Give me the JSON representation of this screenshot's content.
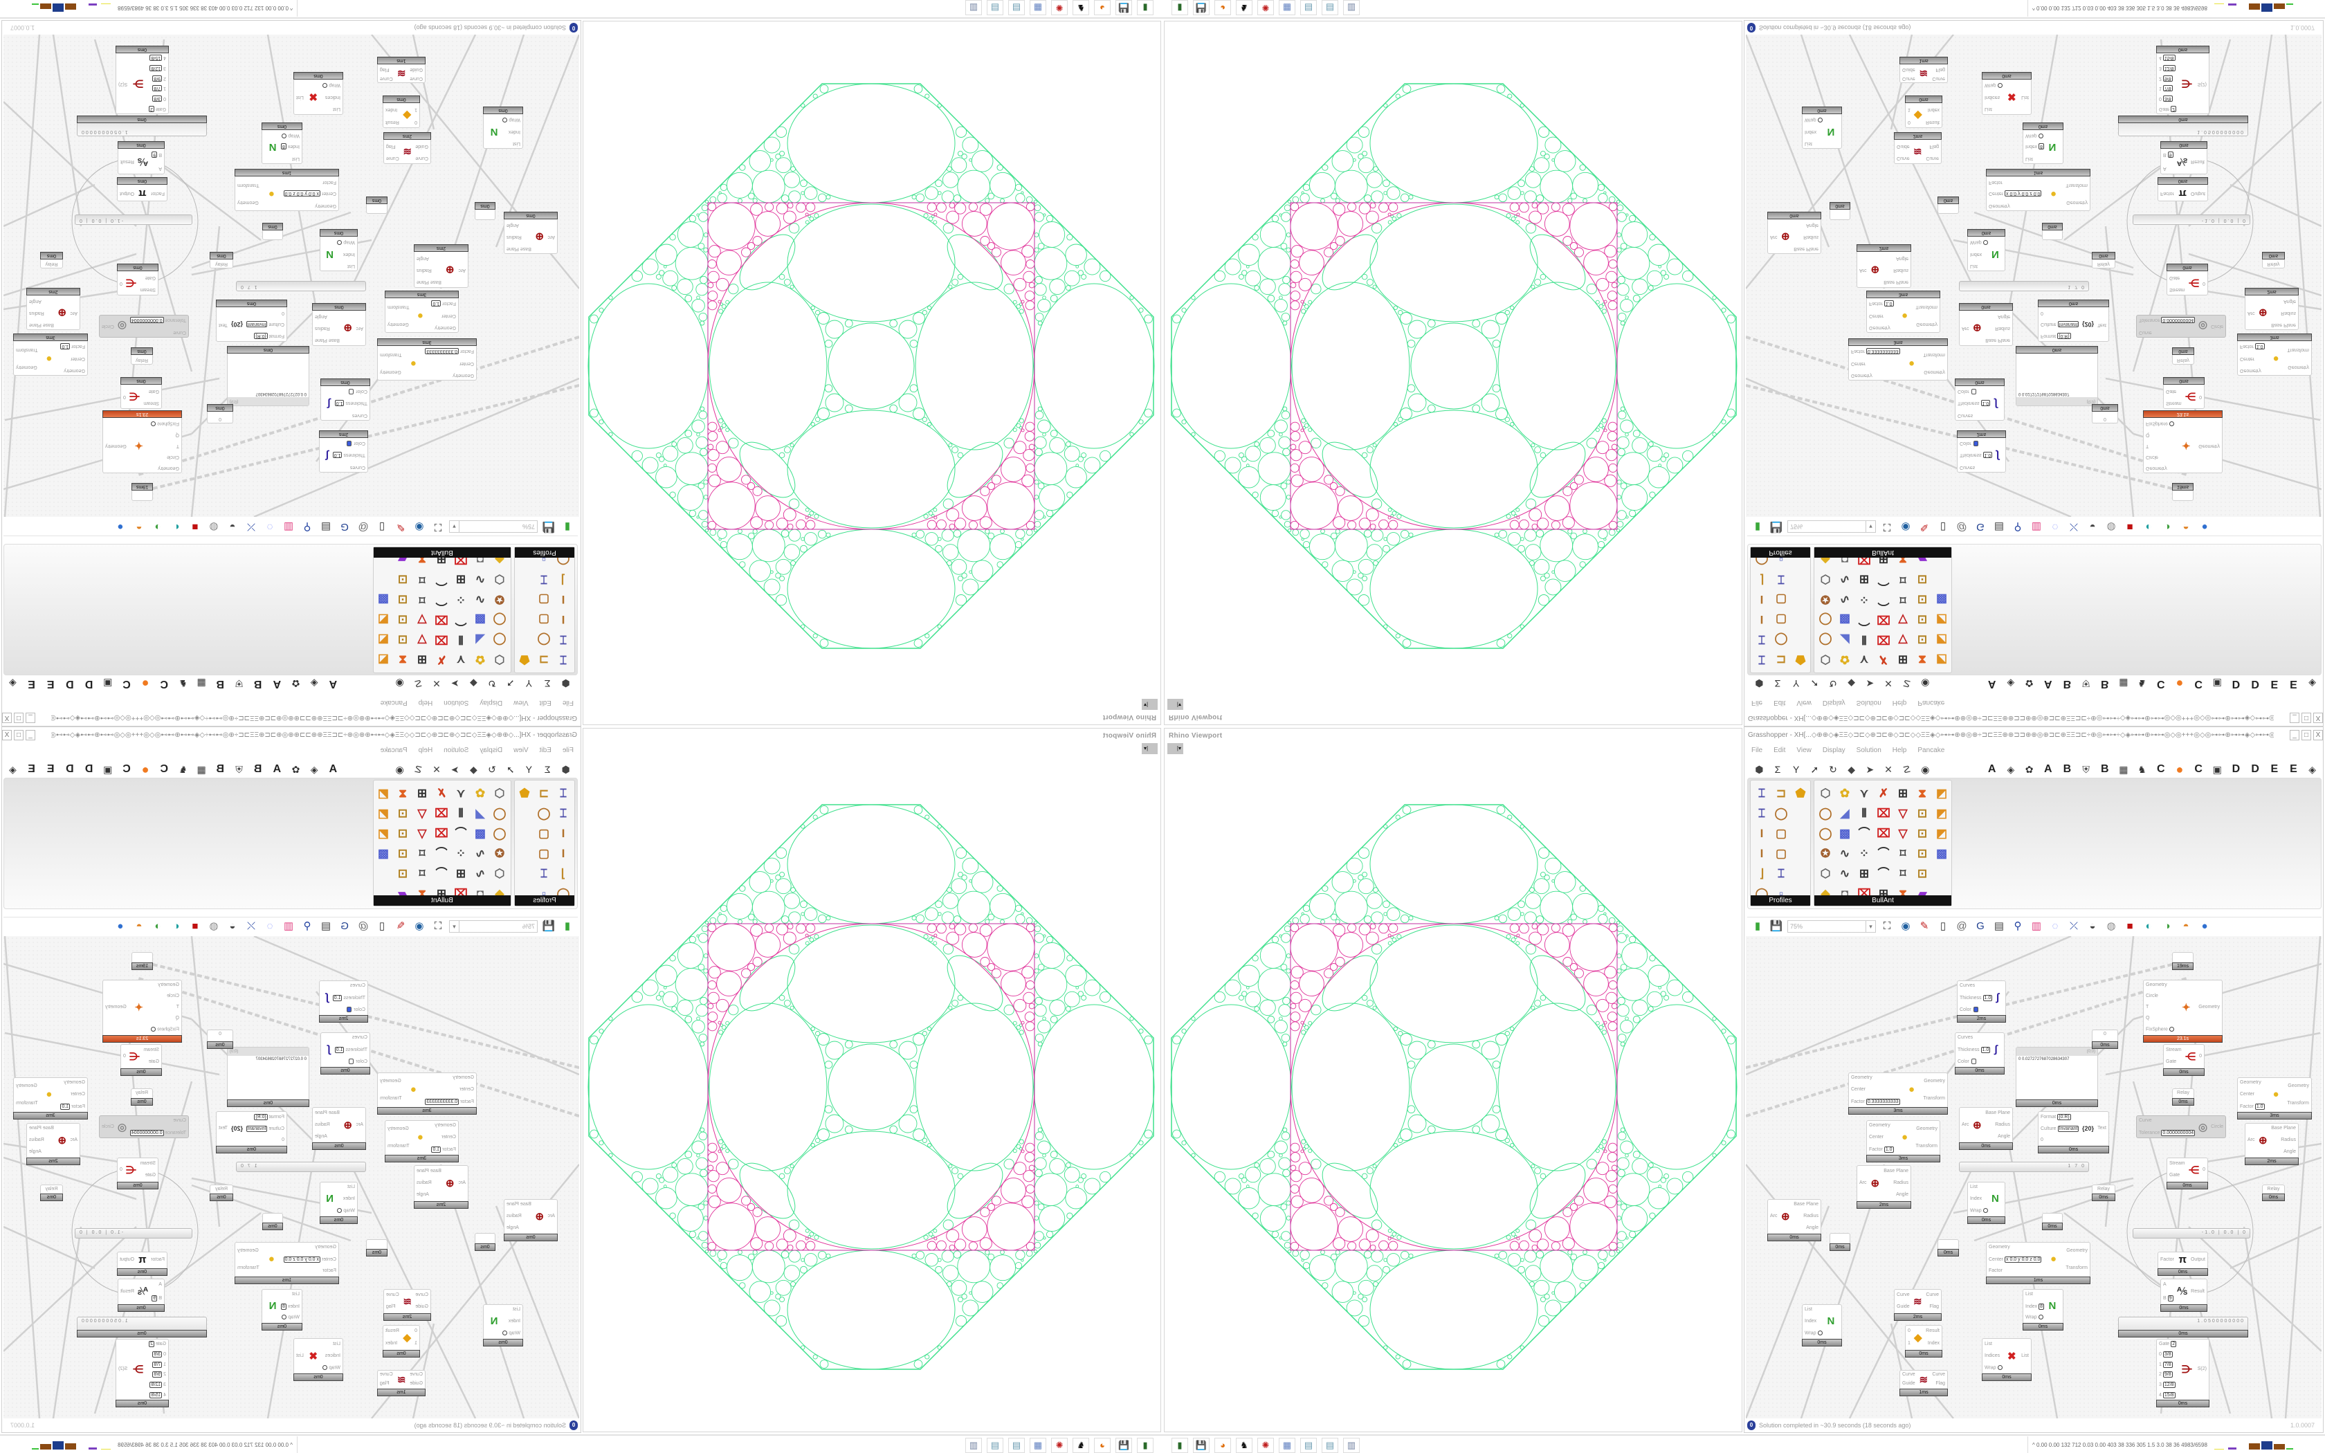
{
  "rhino_viewport": {
    "title": "Rhino Viewport",
    "dropdown_icon": "caret-down-icon"
  },
  "grasshopper": {
    "title": "Grasshopper - XH[...◇⊕⊕◇◈ΞΞ◇⊐⊏◇⊕⊐⊏⊕◇⊐⊏◇◇ΞΞ◈◇⊶⊶⊕⊕◎⊕÷⊐⊏ΞΞ⊕⊕⊐⊐⊕⊕◎⊕⊐⊏⊕ΞΞ⊐⊏÷⊕◎⊶⊶÷◇◈⊶⊶⊕⊶⊶◎◇◎+++◎◇◎⊶⊶⊕⊶⊶◈◇⊶⊶◎⊕÷⊐⊏ΞΞ⊕⊐⊐⊕⊕...",
    "window_buttons": [
      "_",
      "□",
      "X"
    ],
    "menu": [
      "File",
      "Edit",
      "View",
      "Display",
      "Solution",
      "Help",
      "Pancake"
    ],
    "tab_icons": [
      "hexagon-icon",
      "sigma-icon",
      "y-branch-icon",
      "arrow-icon",
      "loop-icon",
      "surface-icon",
      "pin-icon",
      "cross-icon",
      "curve-icon",
      "eye-icon"
    ],
    "tab_letters": [
      "A",
      "icon",
      "icon",
      "A",
      "B",
      "icon",
      "B",
      "icon",
      "icon",
      "C",
      "orange-dot",
      "C",
      "icon",
      "D",
      "D",
      "E",
      "E",
      "icon"
    ],
    "palette": {
      "groups": [
        {
          "label": "Profiles",
          "columns": 3,
          "icons": [
            "i-section",
            "c-channel",
            "hollow-section",
            "i-section",
            "ring",
            "",
            "i-beam",
            "rect-tube",
            "",
            "i-beam",
            "rect-tube",
            "",
            "angle",
            "i-section",
            "",
            "ring",
            "points",
            ""
          ]
        },
        {
          "label": "BullAnt",
          "columns": 7,
          "icons": [
            "box",
            "flower",
            "v-lines",
            "cross",
            "ladder",
            "funnel",
            "chart",
            "ring",
            "plane",
            "bars",
            "red-cross",
            "v-net",
            "lock",
            "chart",
            "ring",
            "cube",
            "bend",
            "red-cross",
            "v-net",
            "lock",
            "chart",
            "ball",
            "curve",
            "net",
            "bend",
            "frame",
            "lock",
            "cube",
            "box",
            "curve",
            "ladder",
            "bend",
            "frame",
            "lock",
            "",
            "diamond",
            "disk",
            "red-cross",
            "ladder",
            "funnel",
            "rainbow",
            ""
          ]
        }
      ]
    },
    "toolbar": {
      "zoom_value": "75%",
      "icons": [
        "new-file-icon",
        "save-icon",
        "zoom-extents-icon",
        "preview-icon",
        "sketch-icon",
        "bake-icon",
        "at-icon",
        "gha-icon",
        "document-icon",
        "search-icon",
        "package-icon",
        "bulb-icon",
        "wires-icon",
        "shaded-icon",
        "wireframe-icon",
        "solid-icon",
        "preview-mesh-icon",
        "preview-green-icon",
        "preview-half-icon",
        "sphere-icon"
      ]
    },
    "canvas": {
      "nodes": [
        {
          "kind": "component",
          "icon": "custom-preview-icon",
          "inputs": [
            "Curves",
            {
              "n": "Thickness",
              "v": "1.0"
            },
            {
              "n": "Color",
              "swatch": "#3b5bdb"
            }
          ],
          "outputs": [],
          "footer": "2ms"
        },
        {
          "kind": "component",
          "icon": "custom-preview-icon",
          "inputs": [
            "Curves",
            {
              "n": "Thickness",
              "v": "1.0"
            },
            {
              "n": "Color",
              "swatch": "#ffffff"
            }
          ],
          "outputs": [],
          "footer": "0ms"
        },
        {
          "kind": "component",
          "icon": "scale-icon",
          "inputs": [
            "Geometry",
            "Center",
            {
              "n": "Factor",
              "v": "0.3333333333"
            }
          ],
          "outputs": [
            "Geometry",
            "Transform"
          ],
          "footer": "3ms"
        },
        {
          "kind": "component",
          "icon": "scale-icon",
          "inputs": [
            "Geometry",
            "Center",
            {
              "n": "Factor",
              "v": "1.0"
            }
          ],
          "outputs": [
            "Geometry",
            "Transform"
          ],
          "footer": "3ms"
        },
        {
          "kind": "component",
          "icon": "arc-icon",
          "inputs": [
            "Arc"
          ],
          "outputs": [
            "Base Plane",
            "Radius",
            "Angle"
          ],
          "footer": "0ms"
        },
        {
          "kind": "component",
          "icon": "format-icon",
          "icon_text": "{20}",
          "inputs": [
            {
              "n": "Format",
              "v": "{0:R}"
            },
            {
              "n": "Culture",
              "v": "Invariant"
            },
            "0"
          ],
          "outputs": [
            "Text"
          ],
          "footer": "0ms"
        },
        {
          "kind": "panel",
          "header": "(0;0)",
          "text": "0  0.0272727687028634307",
          "footer": "0ms"
        },
        {
          "kind": "param",
          "label": "0",
          "footer": "0ms"
        },
        {
          "kind": "component",
          "state": "warning",
          "icon": "kangaroo-icon",
          "inputs": [
            "Geometry",
            "Circle",
            "T",
            "Q",
            {
              "n": "FixSphere",
              "toggle": true
            }
          ],
          "outputs": [
            "Geometry"
          ],
          "footer": "23.1s"
        },
        {
          "kind": "param",
          "label": "",
          "footer": "19ms"
        },
        {
          "kind": "component",
          "icon": "stream-gate-icon",
          "inputs": [
            "Stream",
            "Gate"
          ],
          "outputs": [
            "0"
          ],
          "footer": "0ms"
        },
        {
          "kind": "param",
          "label": "Relay",
          "footer": "0ms"
        },
        {
          "kind": "component",
          "icon": "scale-icon",
          "inputs": [
            "Geometry",
            "Center",
            {
              "n": "Factor",
              "v": "1.0"
            }
          ],
          "outputs": [
            "Geometry",
            "Transform"
          ],
          "footer": "3ms"
        },
        {
          "kind": "component",
          "state": "disabled",
          "icon": "circle-fit-icon",
          "inputs": [
            "Curve",
            {
              "n": "Tolerance",
              "v": "0.0000000004"
            }
          ],
          "outputs": [
            "Circle"
          ]
        },
        {
          "kind": "component",
          "icon": "arc-icon",
          "inputs": [
            "Arc"
          ],
          "outputs": [
            "Base Plane",
            "Radius",
            "Angle"
          ],
          "footer": "2ms"
        },
        {
          "kind": "component",
          "icon": "stream-gate-icon",
          "inputs": [
            "Stream",
            "Gate"
          ],
          "outputs": [
            "0"
          ],
          "footer": "0ms"
        },
        {
          "kind": "slider",
          "value": "1 7 0"
        },
        {
          "kind": "component",
          "icon": "arc-icon",
          "inputs": [
            "Arc"
          ],
          "outputs": [
            "Base Plane",
            "Radius",
            "Angle"
          ],
          "footer": "2ms"
        },
        {
          "kind": "component",
          "icon": "arc-icon",
          "inputs": [
            "Arc"
          ],
          "outputs": [
            "Base Plane",
            "Radius",
            "Angle"
          ],
          "footer": "0ms"
        },
        {
          "kind": "param",
          "label": "",
          "footer": "0ms"
        },
        {
          "kind": "component",
          "icon": "list-item-icon",
          "inputs": [
            "List",
            "Index",
            {
              "n": "Wrap",
              "toggle": true
            }
          ],
          "outputs": [
            ""
          ],
          "footer": "0ms"
        },
        {
          "kind": "param",
          "label": "",
          "footer": "0ms"
        },
        {
          "kind": "param",
          "label": "",
          "footer": "0ms"
        },
        {
          "kind": "param",
          "label": "Relay",
          "footer": "0ms"
        },
        {
          "kind": "param",
          "label": "Relay",
          "footer": "0ms"
        },
        {
          "kind": "component",
          "icon": "scale-icon",
          "inputs": [
            "Geometry",
            {
              "n": "Center",
              "v": "x 0.0 y 0.0 z 0.0"
            },
            "Factor"
          ],
          "outputs": [
            "Geometry",
            "Transform"
          ],
          "footer": "1ms"
        },
        {
          "kind": "slider",
          "value": "-1.0 | 0.0 | 0"
        },
        {
          "kind": "component",
          "icon": "pi-icon",
          "inputs": [
            "Factor"
          ],
          "outputs": [
            "Output"
          ],
          "footer": "0ms"
        },
        {
          "kind": "component",
          "icon": "division-icon",
          "inputs": [
            "A",
            {
              "n": "B",
              "v": "9"
            }
          ],
          "outputs": [
            "Result"
          ],
          "footer": "0ms"
        },
        {
          "kind": "slider",
          "value": "1.0500000000",
          "footer": "0ms"
        },
        {
          "kind": "component",
          "icon": "stream-filter-icon",
          "inputs": [
            {
              "n": "Gate",
              "v": "2"
            },
            {
              "n": "0",
              "v": "3/8"
            },
            {
              "n": "1",
              "v": "7/8"
            },
            {
              "n": "2",
              "v": "9/8"
            },
            {
              "n": "3",
              "v": "12/8"
            },
            {
              "n": "4",
              "v": "15/8"
            }
          ],
          "outputs": [
            "S(2)"
          ],
          "footer": "0ms"
        },
        {
          "kind": "component",
          "icon": "flip-curve-icon",
          "inputs": [
            "Curve",
            "Guide"
          ],
          "outputs": [
            "Curve",
            "Flag"
          ],
          "footer": "2ms"
        },
        {
          "kind": "component",
          "icon": "list-item-icon",
          "inputs": [
            "List",
            {
              "n": "Index",
              "v": "8"
            },
            {
              "n": "Wrap",
              "toggle": true
            }
          ],
          "outputs": [
            ""
          ],
          "footer": "0ms"
        },
        {
          "kind": "component",
          "icon": "list-item-icon",
          "inputs": [
            "List",
            "Index",
            {
              "n": "Wrap",
              "toggle": true
            }
          ],
          "outputs": [
            ""
          ],
          "footer": "0ms"
        },
        {
          "kind": "component",
          "icon": "dispatch-icon",
          "inputs": [
            "0",
            "1"
          ],
          "outputs": [
            "Result",
            "Index"
          ],
          "footer": "0ms"
        },
        {
          "kind": "component",
          "icon": "cull-index-icon",
          "inputs": [
            "List",
            "Indices",
            {
              "n": "Wrap",
              "toggle": true
            }
          ],
          "outputs": [
            "List"
          ],
          "footer": "0ms"
        },
        {
          "kind": "component",
          "icon": "flip-curve-icon",
          "inputs": [
            "Curve",
            "Guide"
          ],
          "outputs": [
            "Curve",
            "Flag"
          ],
          "footer": "1ms"
        }
      ]
    },
    "status": {
      "icon": "info-icon",
      "message": "Solution completed in ~30.9 seconds (18 seconds ago)",
      "version": "1.0.0007"
    }
  },
  "viewport_colors": {
    "circles": "#3ee08c",
    "corner_circles": "#e0339a",
    "square": "#c02fa0"
  },
  "taskbar": {
    "apps": [
      "rhino-icon",
      "save64-icon",
      "firefox-icon",
      "inkscape-icon",
      "settings-icon",
      "calculator-icon",
      "notepad-icon",
      "notepad2-icon",
      "files-icon"
    ],
    "tray_text": "0.00 0.00 132  712  0.03 0.00 403   38   336  305   1.5   3.0   38    36  4983/6598"
  }
}
